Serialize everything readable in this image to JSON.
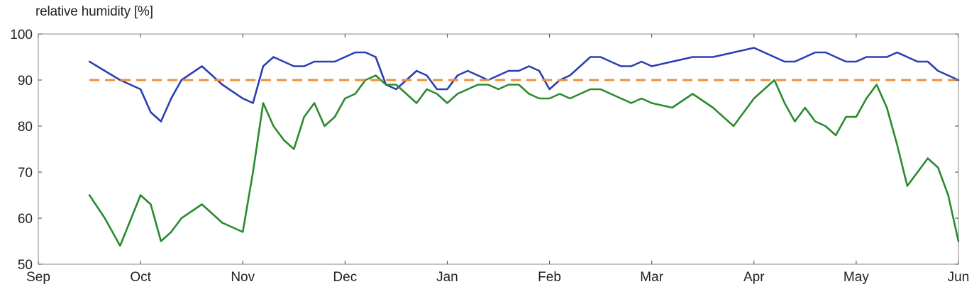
{
  "chart_data": {
    "type": "line",
    "title": "",
    "xlabel": "",
    "ylabel": "relative humidity [%]",
    "ylim": [
      50,
      100
    ],
    "yticks": [
      50,
      60,
      70,
      80,
      90,
      100
    ],
    "xticks": [
      "Sep",
      "Oct",
      "Nov",
      "Dec",
      "Jan",
      "Feb",
      "Mar",
      "Apr",
      "May",
      "Jun"
    ],
    "grid": false,
    "legend": "none",
    "x": [
      0.5,
      0.65,
      0.8,
      1.0,
      1.1,
      1.2,
      1.3,
      1.4,
      1.6,
      1.8,
      2.0,
      2.1,
      2.2,
      2.3,
      2.4,
      2.5,
      2.6,
      2.7,
      2.8,
      2.9,
      3.0,
      3.1,
      3.2,
      3.3,
      3.4,
      3.5,
      3.6,
      3.7,
      3.8,
      3.9,
      4.0,
      4.1,
      4.2,
      4.3,
      4.4,
      4.5,
      4.6,
      4.7,
      4.8,
      4.9,
      5.0,
      5.1,
      5.2,
      5.3,
      5.4,
      5.5,
      5.6,
      5.7,
      5.8,
      5.9,
      6.0,
      6.2,
      6.4,
      6.6,
      6.8,
      7.0,
      7.2,
      7.3,
      7.4,
      7.5,
      7.6,
      7.7,
      7.8,
      7.9,
      8.0,
      8.1,
      8.2,
      8.3,
      8.4,
      8.5,
      8.6,
      8.7,
      8.8,
      8.9,
      9.0
    ],
    "series": [
      {
        "color": "#2b3fb0",
        "values": [
          94,
          92,
          90,
          88,
          83,
          81,
          86,
          90,
          93,
          89,
          86,
          85,
          93,
          95,
          94,
          93,
          93,
          94,
          94,
          94,
          95,
          96,
          96,
          95,
          89,
          88,
          90,
          92,
          91,
          88,
          88,
          91,
          92,
          91,
          90,
          91,
          92,
          92,
          93,
          92,
          88,
          90,
          91,
          93,
          95,
          95,
          94,
          93,
          93,
          94,
          93,
          94,
          95,
          95,
          96,
          97,
          95,
          94,
          94,
          95,
          96,
          96,
          95,
          94,
          94,
          95,
          95,
          95,
          96,
          95,
          94,
          94,
          92,
          91,
          90
        ]
      },
      {
        "color": "#2a8a2f",
        "values": [
          65,
          60,
          54,
          65,
          63,
          55,
          57,
          60,
          63,
          59,
          57,
          70,
          85,
          80,
          77,
          75,
          82,
          85,
          80,
          82,
          86,
          87,
          90,
          91,
          89,
          89,
          87,
          85,
          88,
          87,
          85,
          87,
          88,
          89,
          89,
          88,
          89,
          89,
          87,
          86,
          86,
          87,
          86,
          87,
          88,
          88,
          87,
          86,
          85,
          86,
          85,
          84,
          87,
          84,
          80,
          86,
          90,
          85,
          81,
          84,
          81,
          80,
          78,
          82,
          82,
          86,
          89,
          84,
          76,
          67,
          70,
          73,
          71,
          65,
          55
        ]
      },
      {
        "color": "#f0903a",
        "dashed": true,
        "values": [
          90,
          90,
          90,
          90,
          90,
          90,
          90,
          90,
          90,
          90,
          90,
          90,
          90,
          90,
          90,
          90,
          90,
          90,
          90,
          90,
          90,
          90,
          90,
          90,
          90,
          90,
          90,
          90,
          90,
          90,
          90,
          90,
          90,
          90,
          90,
          90,
          90,
          90,
          90,
          90,
          90,
          90,
          90,
          90,
          90,
          90,
          90,
          90,
          90,
          90,
          90,
          90,
          90,
          90,
          90,
          90,
          90,
          90,
          90,
          90,
          90,
          90,
          90,
          90,
          90,
          90,
          90,
          90,
          90,
          90,
          90,
          90,
          90,
          90,
          90
        ]
      }
    ]
  }
}
